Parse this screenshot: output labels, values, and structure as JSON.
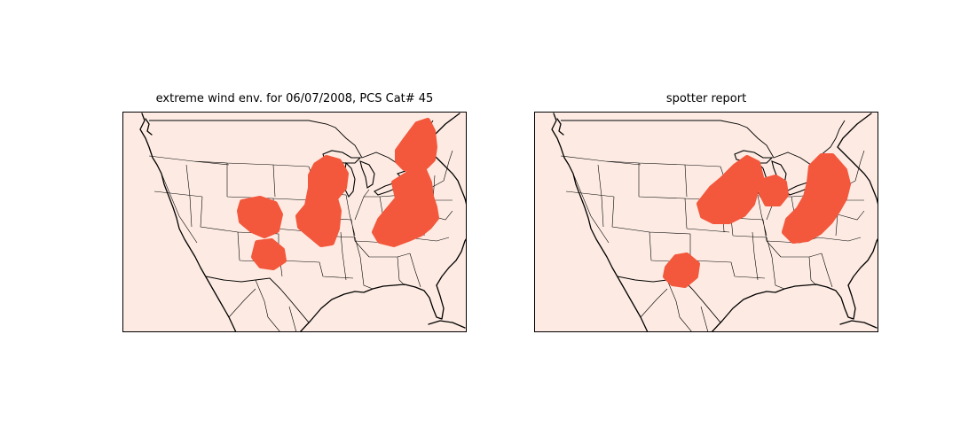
{
  "panels": [
    {
      "title": "extreme wind env. for 06/07/2008, PCS Cat# 45",
      "highlight_color": "#f3573c",
      "background_color": "#fdebe3",
      "regions": [
        "Colorado/Kansas border",
        "Oklahoma/Texas panhandle",
        "Wisconsin to Missouri",
        "Ohio Valley to Mid-Atlantic",
        "New York/New England"
      ]
    },
    {
      "title": "spotter report",
      "highlight_color": "#f3573c",
      "background_color": "#fdebe3",
      "regions": [
        "Nebraska/Iowa to Michigan",
        "Indiana/Ohio",
        "Oklahoma",
        "Ohio Valley to Mid-Atlantic"
      ]
    }
  ]
}
